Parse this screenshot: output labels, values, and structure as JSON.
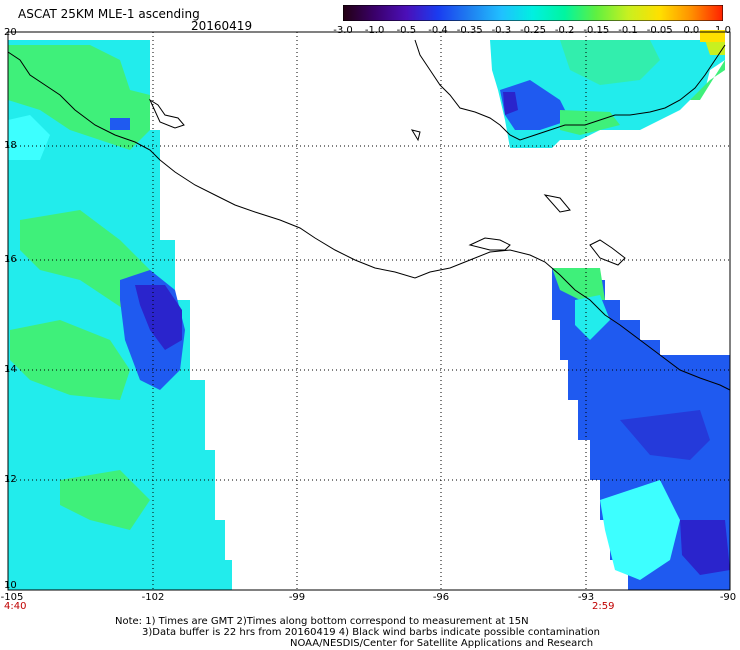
{
  "header": {
    "title": "ASCAT 25KM MLE-1 ascending",
    "date": "20160419"
  },
  "colorbar": {
    "labels": [
      "-3.0",
      "-1.0",
      "-0.5",
      "-0.4",
      "-0.35",
      "-0.3",
      "-0.25",
      "-0.2",
      "-0.15",
      "-0.1",
      "-0.05",
      "0.0",
      "1.0"
    ],
    "colors": [
      "#220011",
      "#3a006a",
      "#4b0fb8",
      "#1a3cf0",
      "#1f7ff0",
      "#20c0ff",
      "#00f0e0",
      "#00f5a0",
      "#60f040",
      "#c8f020",
      "#ffe000",
      "#ff9000",
      "#ff2000"
    ]
  },
  "map": {
    "lat_labels": [
      "20",
      "18",
      "16",
      "14",
      "12",
      "10"
    ],
    "lon_labels": [
      "-105",
      "-102",
      "-99",
      "-96",
      "-93",
      "-90"
    ],
    "time_labels": {
      "left": "4:40",
      "right": "2:59"
    },
    "colors": {
      "grid": "#000000",
      "coast": "#000000",
      "cyan": "#22ecec",
      "green": "#3ff07a",
      "blue": "#1f5af0",
      "dark_blue": "#2a24cc",
      "light_cyan": "#3dffff"
    }
  },
  "notes": {
    "line1": "Note: 1) Times are GMT 2)Times along bottom correspond to measurement at 15N",
    "line2": "3)Data buffer is 22 hrs from 20160419 4) Black wind barbs indicate possible contamination",
    "line3": "NOAA/NESDIS/Center for Satellite Applications and Research"
  }
}
